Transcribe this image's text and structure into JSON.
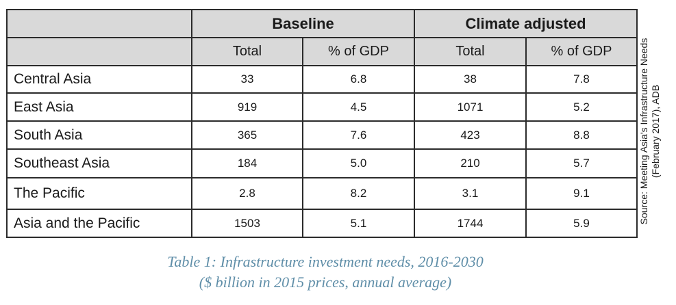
{
  "table": {
    "group_headers": [
      "Baseline",
      "Climate adjusted"
    ],
    "sub_headers": [
      "Total",
      "% of GDP",
      "Total",
      "% of GDP"
    ],
    "rows": [
      {
        "region": "Central Asia",
        "values": [
          "33",
          "6.8",
          "38",
          "7.8"
        ]
      },
      {
        "region": "East Asia",
        "values": [
          "919",
          "4.5",
          "1071",
          "5.2"
        ]
      },
      {
        "region": "South Asia",
        "values": [
          "365",
          "7.6",
          "423",
          "8.8"
        ]
      },
      {
        "region": "Southeast Asia",
        "values": [
          "184",
          "5.0",
          "210",
          "5.7"
        ]
      },
      {
        "region": "The Pacific",
        "values": [
          "2.8",
          "8.2",
          "3.1",
          "9.1"
        ]
      },
      {
        "region": "Asia and the Pacific",
        "values": [
          "1503",
          "5.1",
          "1744",
          "5.9"
        ]
      }
    ],
    "header_bg_color": "#d9d9d9",
    "border_color": "#2b2b2b"
  },
  "source": {
    "line1": "Source: Meeting Asia's Infrastructure Needs",
    "line2": "(February 2017), ADB"
  },
  "caption": {
    "line1": "Table 1: Infrastructure investment needs, 2016-2030",
    "line2": "($ billion in 2015 prices, annual average)",
    "color": "#5f8ea8"
  }
}
